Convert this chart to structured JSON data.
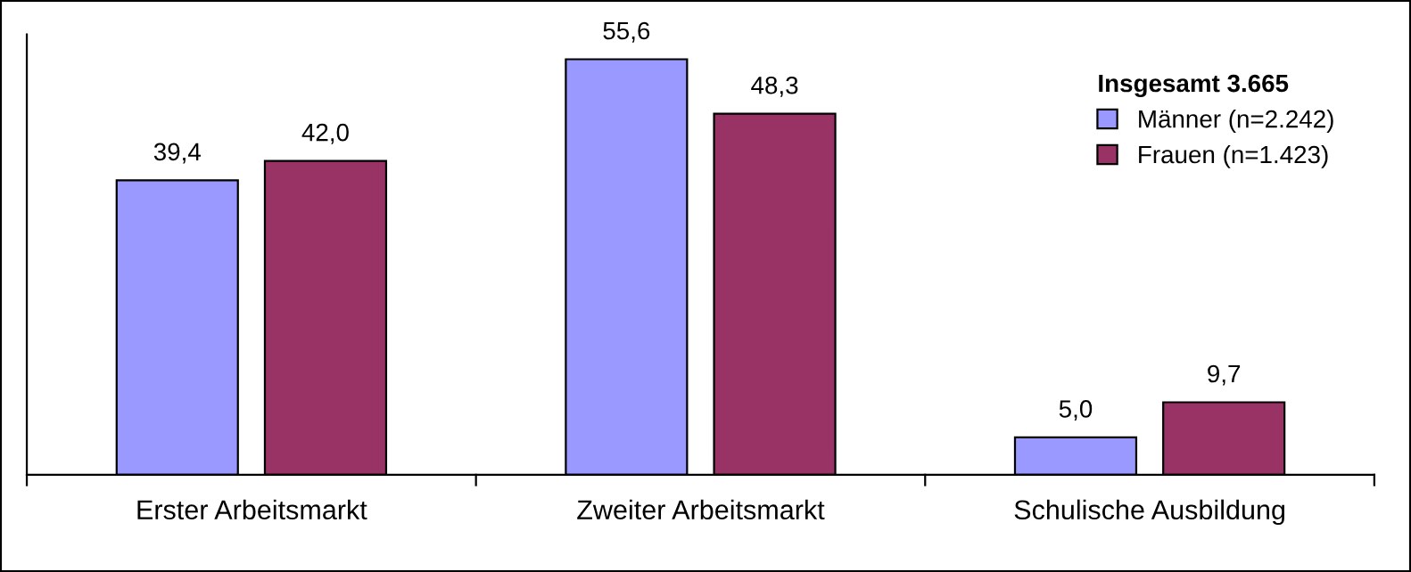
{
  "chart_data": {
    "type": "bar",
    "categories": [
      "Erster Arbeitsmarkt",
      "Zweiter Arbeitsmarkt",
      "Schulische Ausbildung"
    ],
    "series": [
      {
        "name": "Männer (n=2.242)",
        "color": "#9999ff",
        "values": [
          39.4,
          55.6,
          5.0
        ],
        "value_labels": [
          "39,4",
          "55,6",
          "5,0"
        ]
      },
      {
        "name": "Frauen (n=1.423)",
        "color": "#993366",
        "values": [
          42.0,
          48.3,
          9.7
        ],
        "value_labels": [
          "42,0",
          "48,3",
          "9,7"
        ]
      }
    ],
    "legend_title": "Insgesamt 3.665",
    "legend": "top right",
    "grid": false
  }
}
